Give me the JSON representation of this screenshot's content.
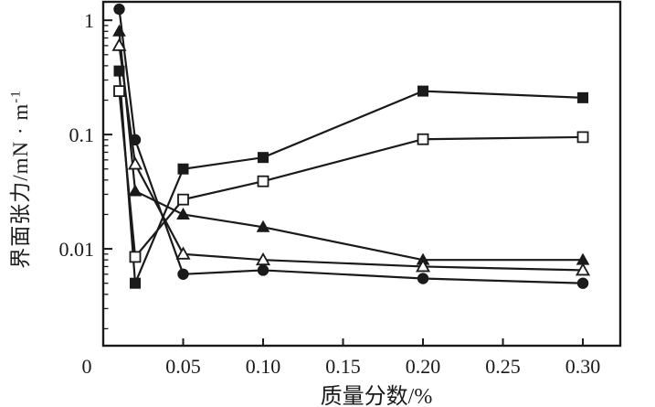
{
  "figure": {
    "background": "#ffffff",
    "ink_color": "#1a1a1a"
  },
  "chart_data": {
    "type": "line",
    "title": "",
    "xlabel": "质量分数/%",
    "ylabel": "界面张力/mN · m",
    "ylabel_superscript": "-1",
    "grid": false,
    "legend": "none",
    "x_axis": {
      "scale": "linear",
      "lim": [
        0,
        0.3234
      ],
      "ticks": [
        0.05,
        0.1,
        0.15,
        0.2,
        0.25,
        0.3
      ],
      "tick_labels": [
        "0.05",
        "0.10",
        "0.15",
        "0.20",
        "0.25",
        "0.30"
      ],
      "origin_label": "0"
    },
    "y_axis": {
      "scale": "log",
      "lim": [
        0.00142,
        1.45
      ],
      "ticks": [
        1,
        0.1,
        0.01
      ],
      "tick_labels": [
        "1",
        "0.1",
        "0.01"
      ],
      "minor_ticks": "log-decade-2-to-9"
    },
    "x": [
      0.01,
      0.02,
      0.05,
      0.1,
      0.2,
      0.3
    ],
    "series": [
      {
        "name": "filled-square",
        "marker": "square",
        "fill": "filled",
        "values": [
          0.36,
          0.005,
          0.05,
          0.063,
          0.24,
          0.21
        ]
      },
      {
        "name": "open-square",
        "marker": "square",
        "fill": "open",
        "values": [
          0.24,
          0.0085,
          0.027,
          0.039,
          0.091,
          0.095
        ]
      },
      {
        "name": "filled-triangle",
        "marker": "triangle",
        "fill": "filled",
        "values": [
          0.8,
          0.032,
          0.02,
          0.0155,
          0.008,
          0.008
        ]
      },
      {
        "name": "open-triangle",
        "marker": "triangle",
        "fill": "open",
        "values": [
          0.6,
          0.055,
          0.009,
          0.008,
          0.007,
          0.0065
        ]
      },
      {
        "name": "filled-circle",
        "marker": "circle",
        "fill": "filled",
        "values": [
          1.25,
          0.09,
          0.006,
          0.0065,
          0.0055,
          0.005
        ]
      }
    ]
  }
}
